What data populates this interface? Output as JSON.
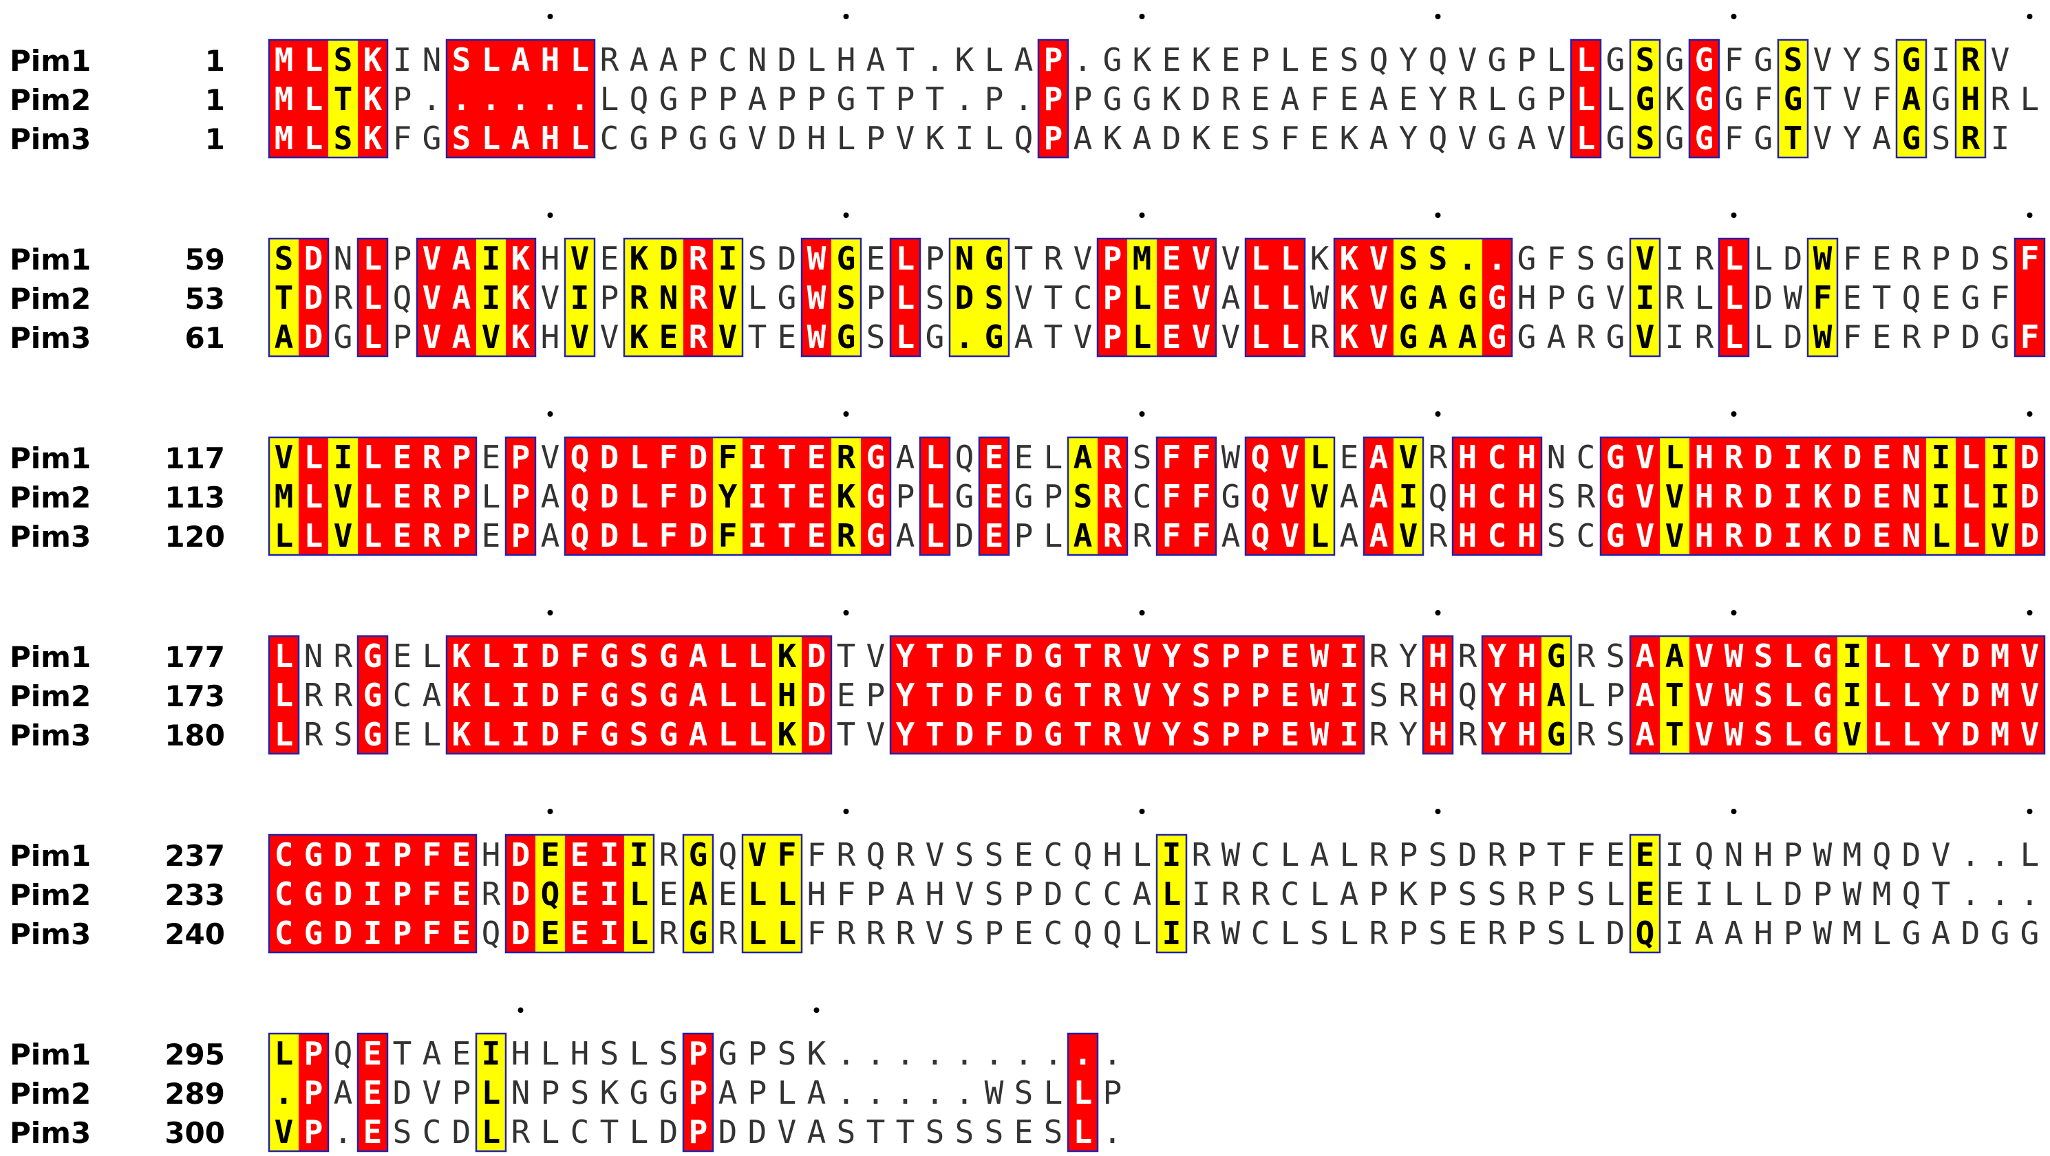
{
  "blocks": [
    {
      "starts": [
        1,
        1,
        1
      ],
      "rows": [
        "MLSKINSLAHLRAAPCNDLHAT.KLAP.GKEKEPLESQYQVGPLLGSGGFGSVYSGIRV",
        "MLTKP......LQGPPAPPGTPT.P.PPGGKDREAFEAEYRLGPLLGKGGFGTVFAGHRL",
        "MLSKFGSLAHLCGPGGVDHLPVKILQPAKADKESFEKAYQVGAVLGSGGFGTVYAGSRI"
      ]
    },
    {
      "starts": [
        59,
        53,
        61
      ],
      "rows": [
        "SDNLPVAIKHVEKDRISDWGELPNGTRVPMEVVLLKKVSS..GFSGVIRLLDWFERPDSF",
        "TDRLQVAIKVIPRNRVLGWSPLSDSVTCPLEVALLWKVGAGGHPGVIRLLDWFETQEGF",
        "ADGLPVAVKHVVKERVTEWGSLG.GATVPLEVVLLRKVGAAGGARGVIRLLDWFERPDGF"
      ]
    },
    {
      "starts": [
        117,
        113,
        120
      ],
      "rows": [
        "VLILERPEPVQDLFDFITERGALQEELARSFFWQVLEAVRHCHNCGVLHRDIKDENILID",
        "MLVLERPLPAQDLFDYITEKGPLGEGPSRCFFGQVVAAIQHCHSRGVVHRDIKDENILID",
        "LLVLERPEPAQDLFDFITERGALDEPLARRFFAQVLAAVRHCHSCGVVHRDIKDENLLVD"
      ]
    },
    {
      "starts": [
        177,
        173,
        180
      ],
      "rows": [
        "LNRGELKLIDFGSGALLKDTVYTDFDGTRVYSPPEWIRYHRYHGRSAAVWSLGILLYDMV",
        "LRRGCAKLIDFGSGALLHDEPYTDFDGTRVYSPPEWISRHQYHALPATVWSLGILLYDMV",
        "LRSGELKLIDFGSGALLKDTVYTDFDGTRVYSPPEWIRYHRYHGRSATVWSLGVLLYDMV"
      ]
    },
    {
      "starts": [
        237,
        233,
        240
      ],
      "rows": [
        "CGDIPFEHDEEIIRGQVFFRQRVSSECQHLIRWCLALRPSDRPTFEEIQNHPWMQDV..L",
        "CGDIPFERDQEILEAELLHFPAHVSPDCCALIRRCLAPKPSSRPSLEEILLDPWMQT....",
        "CGDIPFEQDEEILRGRLLFRRRVSPECQQLIRWCLSLRPSERPSLDQIAAHPWMLGADGG"
      ]
    },
    {
      "starts": [
        295,
        289,
        300
      ],
      "rows": [
        "LPQETAEIHLHSLSPGPSK..........",
        ".PAEDVPLNPSKGGPAPLA.....WSLLP",
        "VP.ESCDLRLCTLDPDDVASTTSSSESL."
      ]
    }
  ],
  "sequence_names": [
    "Pim1",
    "Pim2",
    "Pim3"
  ],
  "legend_colors": {
    "strict_identity": "#ff0000",
    "similarity": "#ffff00",
    "frame": "#2222aa"
  }
}
